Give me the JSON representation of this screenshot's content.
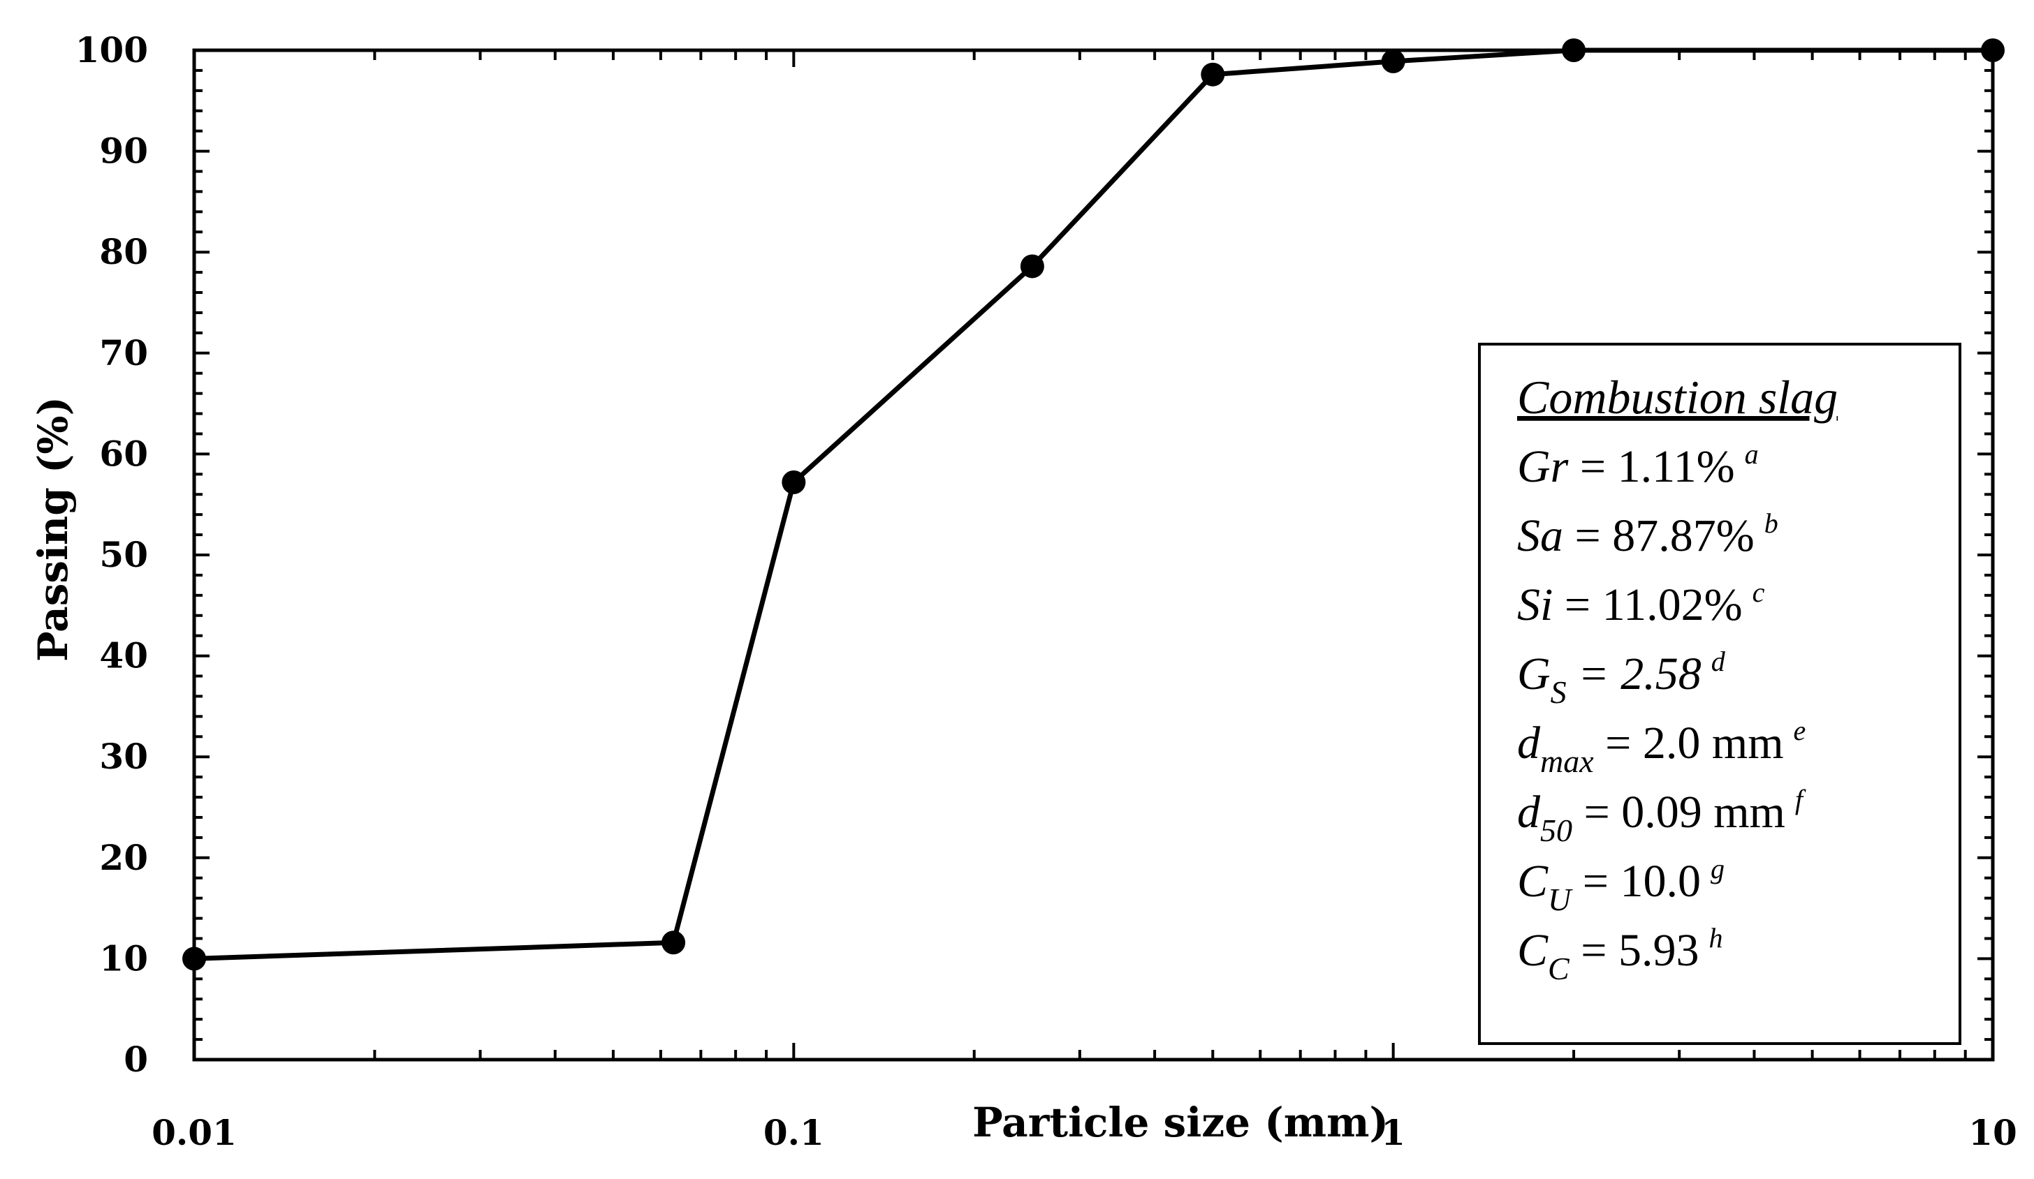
{
  "chart_data": {
    "type": "line",
    "x_scale": "log",
    "xlabel": "Particle size (mm)",
    "ylabel": "Passing (%)",
    "xlim": [
      0.01,
      10
    ],
    "ylim": [
      0,
      100
    ],
    "x_ticks": [
      {
        "value": 0.01,
        "label": "0.01"
      },
      {
        "value": 0.1,
        "label": "0.1"
      },
      {
        "value": 1,
        "label": "1"
      },
      {
        "value": 10,
        "label": "10"
      }
    ],
    "y_ticks": [
      {
        "value": 0,
        "label": "0"
      },
      {
        "value": 10,
        "label": "10"
      },
      {
        "value": 20,
        "label": "20"
      },
      {
        "value": 30,
        "label": "30"
      },
      {
        "value": 40,
        "label": "40"
      },
      {
        "value": 50,
        "label": "50"
      },
      {
        "value": 60,
        "label": "60"
      },
      {
        "value": 70,
        "label": "70"
      },
      {
        "value": 80,
        "label": "80"
      },
      {
        "value": 90,
        "label": "90"
      },
      {
        "value": 100,
        "label": "100"
      }
    ],
    "grid": false,
    "series": [
      {
        "color": "#000000",
        "marker": "circle",
        "x": [
          0.01,
          0.063,
          0.1,
          0.25,
          0.5,
          1,
          2,
          10
        ],
        "y": [
          10,
          11.6,
          57.2,
          78.6,
          97.6,
          98.9,
          100,
          100
        ]
      }
    ],
    "legend": {
      "position": "right",
      "title": "Combustion slag",
      "entries": [
        {
          "sym": "Gr",
          "sub": "",
          "text": " = 1.11%",
          "sup": "a",
          "text_italic": false
        },
        {
          "sym": "Sa",
          "sub": "",
          "text": " = 87.87%",
          "sup": "b",
          "text_italic": false
        },
        {
          "sym": "Si",
          "sub": "",
          "text": " = 11.02%",
          "sup": "c",
          "text_italic": false
        },
        {
          "sym": "G",
          "sub": "S",
          "text": " = 2.58",
          "sup": "d",
          "text_italic": true
        },
        {
          "sym": "d",
          "sub": "max",
          "text": " = 2.0 mm",
          "sup": "e",
          "text_italic": false
        },
        {
          "sym": "d",
          "sub": "50",
          "text": " = 0.09 mm",
          "sup": "f",
          "text_italic": false
        },
        {
          "sym": "C",
          "sub": "U",
          "text": " = 10.0",
          "sup": "g",
          "text_italic": false
        },
        {
          "sym": "C",
          "sub": "C",
          "text": " = 5.93",
          "sup": "h",
          "text_italic": false
        }
      ]
    }
  }
}
